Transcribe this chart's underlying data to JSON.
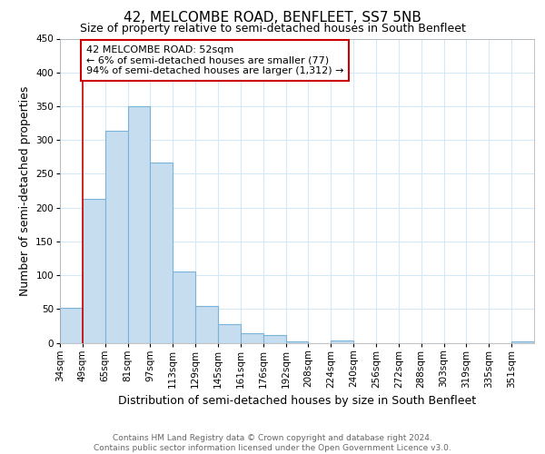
{
  "title": "42, MELCOMBE ROAD, BENFLEET, SS7 5NB",
  "subtitle": "Size of property relative to semi-detached houses in South Benfleet",
  "xlabel": "Distribution of semi-detached houses by size in South Benfleet",
  "ylabel": "Number of semi-detached properties",
  "bins": [
    "34sqm",
    "49sqm",
    "65sqm",
    "81sqm",
    "97sqm",
    "113sqm",
    "129sqm",
    "145sqm",
    "161sqm",
    "176sqm",
    "192sqm",
    "208sqm",
    "224sqm",
    "240sqm",
    "256sqm",
    "272sqm",
    "288sqm",
    "303sqm",
    "319sqm",
    "335sqm",
    "351sqm"
  ],
  "bar_heights": [
    52,
    213,
    313,
    350,
    267,
    105,
    55,
    27,
    14,
    11,
    2,
    0,
    3,
    0,
    0,
    0,
    0,
    0,
    0,
    0,
    2
  ],
  "bar_color": "#c6ddf0",
  "bar_edge_color": "#7ab3d9",
  "property_line_color": "#cc0000",
  "property_bin_index": 1,
  "ylim": [
    0,
    450
  ],
  "yticks": [
    0,
    50,
    100,
    150,
    200,
    250,
    300,
    350,
    400,
    450
  ],
  "annotation_title": "42 MELCOMBE ROAD: 52sqm",
  "annotation_line1": "← 6% of semi-detached houses are smaller (77)",
  "annotation_line2": "94% of semi-detached houses are larger (1,312) →",
  "annotation_box_color": "#ffffff",
  "annotation_box_edge": "#cc0000",
  "grid_color": "#d5e8f5",
  "footer_line1": "Contains HM Land Registry data © Crown copyright and database right 2024.",
  "footer_line2": "Contains public sector information licensed under the Open Government Licence v3.0.",
  "title_fontsize": 11,
  "subtitle_fontsize": 9,
  "axis_label_fontsize": 9,
  "tick_fontsize": 7.5,
  "annotation_fontsize": 8,
  "footer_fontsize": 6.5
}
